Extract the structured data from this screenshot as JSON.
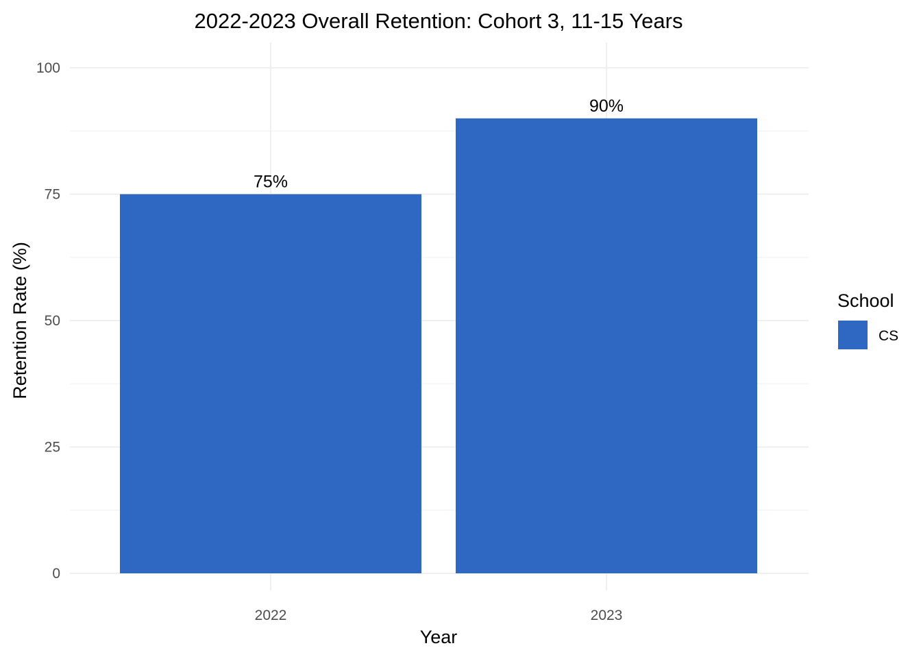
{
  "chart_data": {
    "type": "bar",
    "title": "2022-2023 Overall Retention: Cohort 3, 11-15 Years",
    "xlabel": "Year",
    "ylabel": "Retention Rate (%)",
    "categories": [
      "2022",
      "2023"
    ],
    "series": [
      {
        "name": "CS",
        "values": [
          75,
          90
        ],
        "labels": [
          "75%",
          "90%"
        ],
        "color": "#2e68c3"
      }
    ],
    "ylim": [
      0,
      100
    ],
    "yticks": [
      0,
      25,
      50,
      75,
      100
    ],
    "ytick_labels": [
      "0",
      "25",
      "50",
      "75",
      "100"
    ],
    "grid": true,
    "legend": {
      "title": "School",
      "position": "right",
      "entries": [
        "CS"
      ]
    }
  }
}
